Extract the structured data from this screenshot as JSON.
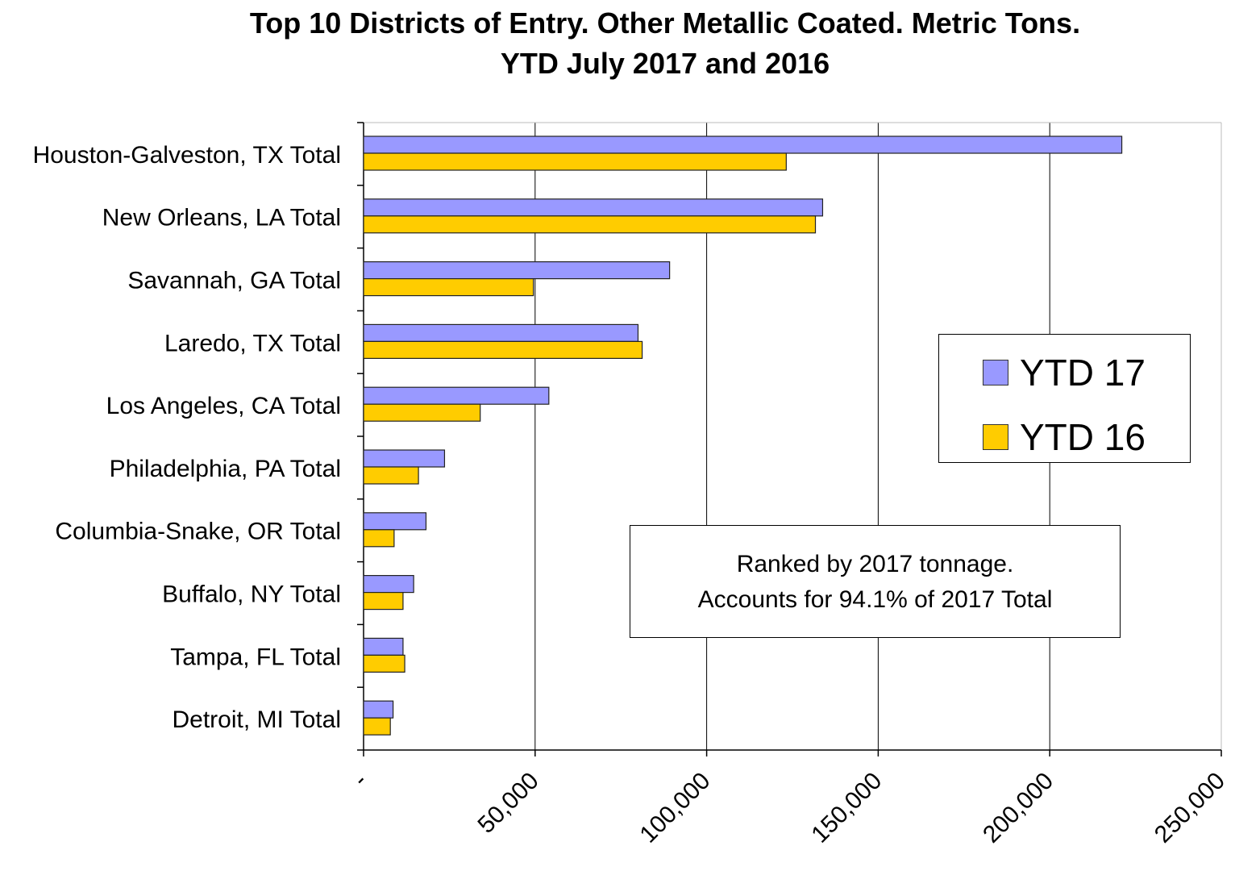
{
  "chart_data": {
    "type": "bar",
    "orientation": "horizontal",
    "title": [
      "Top 10 Districts of Entry. Other Metallic Coated. Metric Tons.",
      "YTD July 2017 and 2016"
    ],
    "xlabel": "",
    "ylabel": "",
    "categories": [
      "Houston-Galveston, TX Total",
      "New Orleans, LA Total",
      "Savannah, GA Total",
      "Laredo, TX Total",
      "Los Angeles, CA Total",
      "Philadelphia, PA Total",
      "Columbia-Snake, OR Total",
      "Buffalo, NY Total",
      "Tampa, FL Total",
      "Detroit, MI Total"
    ],
    "series": [
      {
        "name": "YTD 17",
        "color": "#9999FF",
        "values": [
          221000,
          133800,
          89200,
          80000,
          54000,
          23600,
          18200,
          14600,
          11500,
          8600
        ]
      },
      {
        "name": "YTD 16",
        "color": "#FFCC00",
        "values": [
          123200,
          131700,
          49500,
          81200,
          34000,
          16000,
          8900,
          11500,
          12000,
          7800
        ]
      }
    ],
    "xlim": [
      0,
      250000
    ],
    "xticks": [
      0,
      50000,
      100000,
      150000,
      200000,
      250000
    ],
    "xtick_labels": [
      "-",
      "50,000",
      "100,000",
      "150,000",
      "200,000",
      "250,000"
    ],
    "grid": "vertical",
    "legend_position": "right",
    "annotation": [
      "Ranked by 2017 tonnage.",
      "Accounts for 94.1% of 2017 Total"
    ]
  }
}
